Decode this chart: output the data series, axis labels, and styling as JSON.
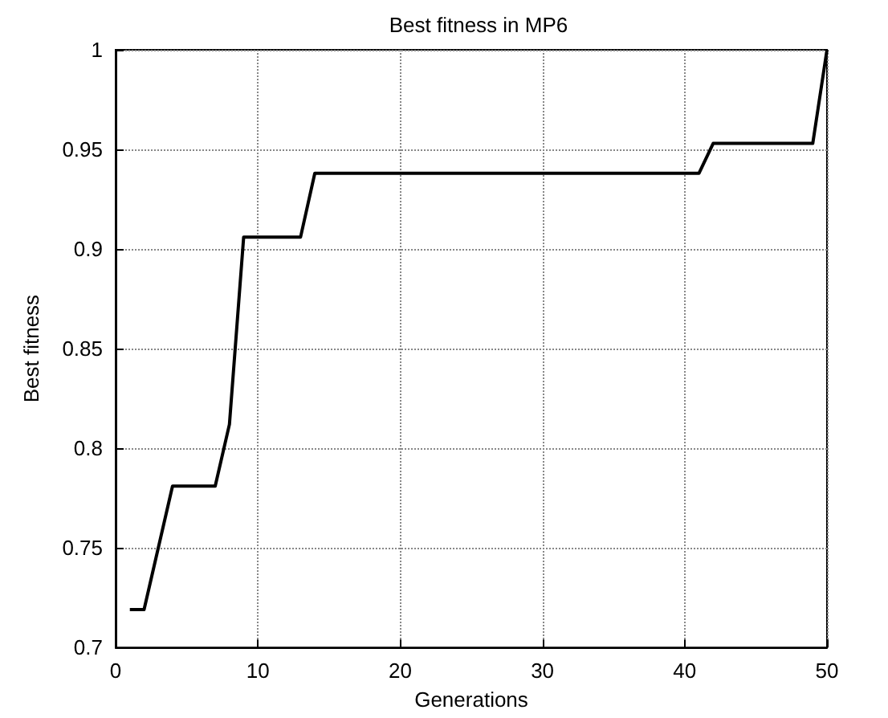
{
  "chart_data": {
    "type": "line",
    "title": "Best fitness in MP6",
    "xlabel": "Generations",
    "ylabel": "Best fitness",
    "x": [
      1,
      2,
      4,
      7,
      8,
      9,
      13,
      14,
      41,
      42,
      49,
      50
    ],
    "series": [
      {
        "color": "#000000",
        "values": [
          0.719,
          0.719,
          0.781,
          0.781,
          0.812,
          0.906,
          0.906,
          0.938,
          0.938,
          0.953,
          0.953,
          1.0
        ]
      }
    ],
    "xlim": [
      0,
      50
    ],
    "xticks": [
      0,
      10,
      20,
      30,
      40,
      50
    ],
    "ylim": [
      0.7,
      1
    ],
    "yticks": [
      0.7,
      0.75,
      0.8,
      0.85,
      0.9,
      0.95,
      1
    ],
    "grid": true,
    "marker": "none",
    "line_style": "solid"
  }
}
